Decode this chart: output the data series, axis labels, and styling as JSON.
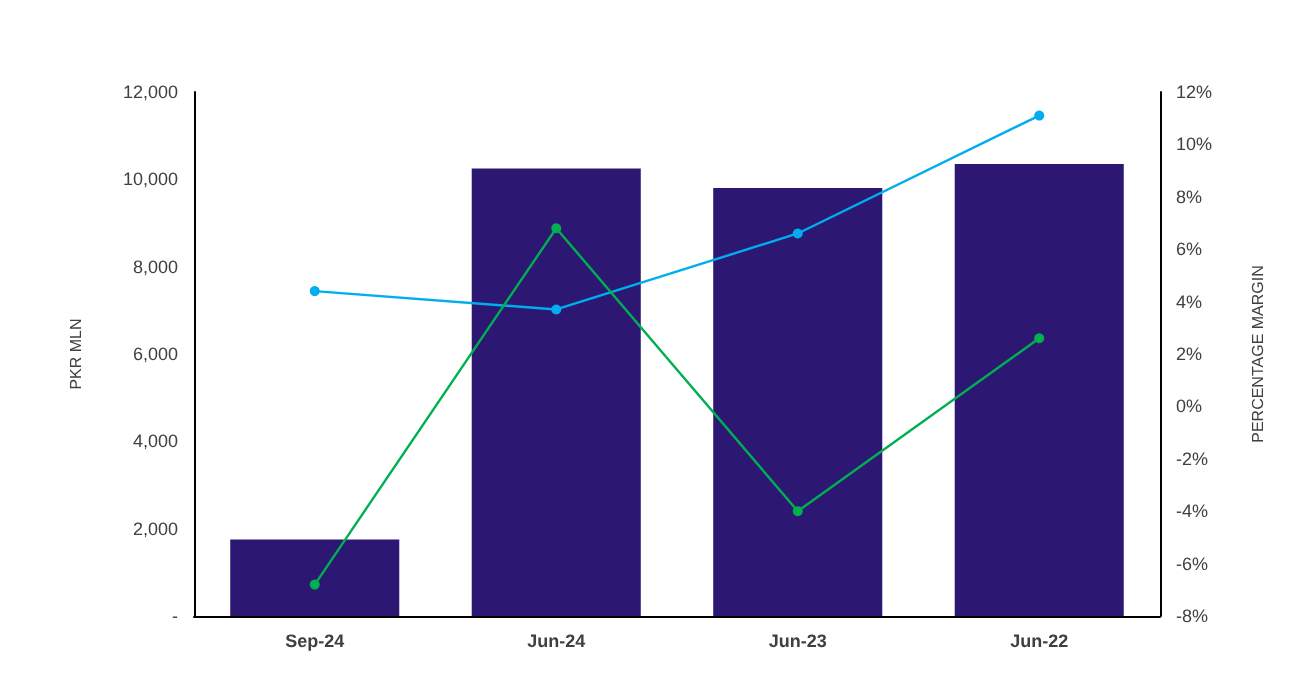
{
  "chart_data": {
    "type": "bar",
    "ylabel": "PKR MLN",
    "y2label": "PERCENTAGE MARGIN",
    "categories": [
      "Sep-24",
      "Jun-24",
      "Jun-23",
      "Jun-22"
    ],
    "series": [
      {
        "color": "#2c1873",
        "values": [
          1750,
          10250,
          9800,
          10350
        ]
      },
      {
        "type": "line",
        "axis": "y2",
        "color": "#00aeef",
        "values": [
          4.4,
          3.7,
          6.6,
          11.1
        ]
      },
      {
        "type": "line",
        "axis": "y2",
        "color": "#00b050",
        "values": [
          -6.8,
          6.8,
          -4.0,
          2.6
        ]
      }
    ],
    "ylim": [
      0,
      12000
    ],
    "yticks": [
      {
        "value": 0,
        "label": "-"
      },
      {
        "value": 2000,
        "label": "2,000"
      },
      {
        "value": 4000,
        "label": "4,000"
      },
      {
        "value": 6000,
        "label": "6,000"
      },
      {
        "value": 8000,
        "label": "8,000"
      },
      {
        "value": 10000,
        "label": "10,000"
      },
      {
        "value": 12000,
        "label": "12,000"
      }
    ],
    "y2lim": [
      -8,
      12
    ],
    "y2ticks": [
      {
        "value": -8,
        "label": "-8%"
      },
      {
        "value": -6,
        "label": "-6%"
      },
      {
        "value": -4,
        "label": "-4%"
      },
      {
        "value": -2,
        "label": "-2%"
      },
      {
        "value": 0,
        "label": "0%"
      },
      {
        "value": 2,
        "label": "2%"
      },
      {
        "value": 4,
        "label": "4%"
      },
      {
        "value": 6,
        "label": "6%"
      },
      {
        "value": 8,
        "label": "8%"
      },
      {
        "value": 10,
        "label": "10%"
      },
      {
        "value": 12,
        "label": "12%"
      }
    ],
    "grid": false,
    "marker": "circle"
  }
}
